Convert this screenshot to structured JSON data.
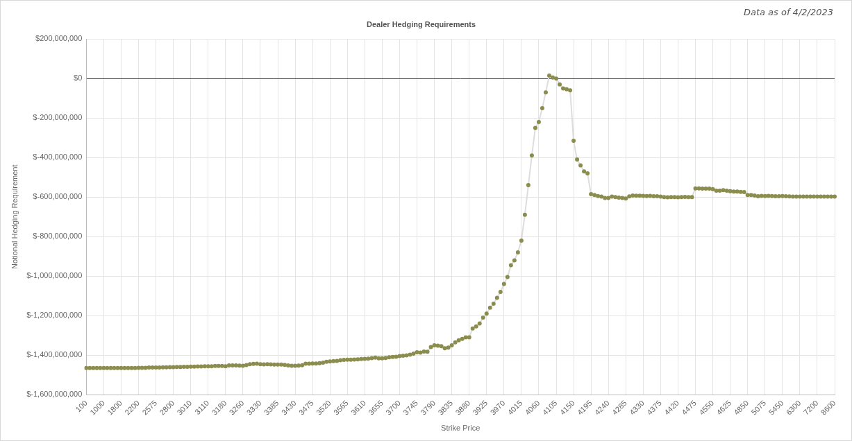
{
  "chart_data": {
    "type": "line",
    "title": "Dealer Hedging Requirements",
    "annotation": "Data as of 4/2/2023",
    "x_label": "Strike Price",
    "y_label": "Notional Hedging Requirement",
    "color": "#8b8d4e",
    "marker": "circle",
    "line_style": "solid",
    "grid": true,
    "categories": [
      "100",
      null,
      null,
      null,
      null,
      "1000",
      null,
      null,
      null,
      null,
      "1800",
      null,
      null,
      null,
      null,
      "2200",
      null,
      null,
      null,
      null,
      "2575",
      null,
      null,
      null,
      null,
      "2800",
      null,
      null,
      null,
      null,
      "3010",
      null,
      null,
      null,
      null,
      "3110",
      null,
      null,
      null,
      null,
      "3180",
      null,
      null,
      null,
      null,
      "3260",
      null,
      null,
      null,
      null,
      "3330",
      null,
      null,
      null,
      null,
      "3385",
      null,
      null,
      null,
      null,
      "3430",
      null,
      null,
      null,
      null,
      "3475",
      null,
      null,
      null,
      null,
      "3520",
      null,
      null,
      null,
      null,
      "3565",
      null,
      null,
      null,
      null,
      "3610",
      null,
      null,
      null,
      null,
      "3655",
      null,
      null,
      null,
      null,
      "3700",
      null,
      null,
      null,
      null,
      "3745",
      null,
      null,
      null,
      null,
      "3790",
      null,
      null,
      null,
      null,
      "3835",
      null,
      null,
      null,
      null,
      "3880",
      null,
      null,
      null,
      null,
      "3925",
      null,
      null,
      null,
      null,
      "3970",
      null,
      null,
      null,
      null,
      "4015",
      null,
      null,
      null,
      null,
      "4060",
      null,
      null,
      null,
      null,
      "4105",
      null,
      null,
      null,
      null,
      "4150",
      null,
      null,
      null,
      null,
      "4195",
      null,
      null,
      null,
      null,
      "4240",
      null,
      null,
      null,
      null,
      "4285",
      null,
      null,
      null,
      null,
      "4330",
      null,
      null,
      null,
      null,
      "4375",
      null,
      null,
      null,
      null,
      "4420",
      null,
      null,
      null,
      null,
      "4475",
      null,
      null,
      null,
      null,
      "4550",
      null,
      null,
      null,
      null,
      "4625",
      null,
      null,
      null,
      null,
      "4850",
      null,
      null,
      null,
      null,
      "5075",
      null,
      null,
      null,
      null,
      "5450",
      null,
      null,
      null,
      null,
      "6300",
      null,
      null,
      null,
      null,
      "7200",
      null,
      null,
      null,
      null,
      "8600"
    ],
    "values": [
      -1465000000,
      -1465000000,
      -1465000000,
      -1465000000,
      -1465000000,
      -1465000000,
      -1465000000,
      -1465000000,
      -1465000000,
      -1465000000,
      -1465000000,
      -1465000000,
      -1465000000,
      -1465000000,
      -1465000000,
      -1464000000,
      -1464000000,
      -1464000000,
      -1463000000,
      -1463000000,
      -1463000000,
      -1463000000,
      -1462000000,
      -1462000000,
      -1461000000,
      -1461000000,
      -1460000000,
      -1460000000,
      -1459000000,
      -1459000000,
      -1458000000,
      -1458000000,
      -1457000000,
      -1457000000,
      -1456000000,
      -1456000000,
      -1456000000,
      -1455000000,
      -1455000000,
      -1455000000,
      -1456000000,
      -1452000000,
      -1452000000,
      -1452000000,
      -1453000000,
      -1454000000,
      -1450000000,
      -1446000000,
      -1444000000,
      -1443000000,
      -1446000000,
      -1447000000,
      -1446000000,
      -1447000000,
      -1448000000,
      -1448000000,
      -1448000000,
      -1449000000,
      -1452000000,
      -1454000000,
      -1454000000,
      -1453000000,
      -1451000000,
      -1443000000,
      -1443000000,
      -1442000000,
      -1442000000,
      -1441000000,
      -1438000000,
      -1434000000,
      -1432000000,
      -1430000000,
      -1429000000,
      -1426000000,
      -1424000000,
      -1423000000,
      -1423000000,
      -1422000000,
      -1421000000,
      -1420000000,
      -1419000000,
      -1418000000,
      -1415000000,
      -1413000000,
      -1416000000,
      -1416000000,
      -1414000000,
      -1411000000,
      -1409000000,
      -1408000000,
      -1405000000,
      -1403000000,
      -1401000000,
      -1398000000,
      -1392000000,
      -1385000000,
      -1387000000,
      -1382000000,
      -1383000000,
      -1359000000,
      -1350000000,
      -1352000000,
      -1355000000,
      -1365000000,
      -1362000000,
      -1350000000,
      -1335000000,
      -1325000000,
      -1318000000,
      -1310000000,
      -1310000000,
      -1265000000,
      -1255000000,
      -1240000000,
      -1210000000,
      -1190000000,
      -1160000000,
      -1140000000,
      -1110000000,
      -1080000000,
      -1040000000,
      -1005000000,
      -945000000,
      -920000000,
      -880000000,
      -820000000,
      -690000000,
      -540000000,
      -390000000,
      -250000000,
      -220000000,
      -150000000,
      -70000000,
      15000000,
      5000000,
      0,
      -30000000,
      -50000000,
      -55000000,
      -60000000,
      -315000000,
      -410000000,
      -440000000,
      -470000000,
      -480000000,
      -585000000,
      -590000000,
      -595000000,
      -598000000,
      -605000000,
      -605000000,
      -598000000,
      -600000000,
      -603000000,
      -605000000,
      -607000000,
      -597000000,
      -592000000,
      -593000000,
      -593000000,
      -594000000,
      -595000000,
      -594000000,
      -596000000,
      -596000000,
      -598000000,
      -600000000,
      -601000000,
      -600000000,
      -600000000,
      -601000000,
      -600000000,
      -599000000,
      -600000000,
      -600000000,
      -556000000,
      -556000000,
      -557000000,
      -557000000,
      -557000000,
      -560000000,
      -568000000,
      -568000000,
      -565000000,
      -568000000,
      -570000000,
      -572000000,
      -572000000,
      -574000000,
      -575000000,
      -590000000,
      -590000000,
      -592000000,
      -596000000,
      -594000000,
      -595000000,
      -594000000,
      -595000000,
      -596000000,
      -596000000,
      -595000000,
      -596000000,
      -597000000,
      -598000000,
      -598000000,
      -598000000,
      -598000000,
      -598000000,
      -598000000,
      -598000000,
      -598000000,
      -598000000,
      -598000000,
      -598000000,
      -598000000,
      -598000000
    ],
    "ylim": [
      -1600000000,
      200000000
    ],
    "yticks": [
      {
        "value": -1600000000,
        "label": "$-1,600,000,000"
      },
      {
        "value": -1400000000,
        "label": "$-1,400,000,000"
      },
      {
        "value": -1200000000,
        "label": "$-1,200,000,000"
      },
      {
        "value": -1000000000,
        "label": "$-1,000,000,000"
      },
      {
        "value": -800000000,
        "label": "$-800,000,000"
      },
      {
        "value": -600000000,
        "label": "$-600,000,000"
      },
      {
        "value": -400000000,
        "label": "$-400,000,000"
      },
      {
        "value": -200000000,
        "label": "$-200,000,000"
      },
      {
        "value": 0,
        "label": "$0"
      },
      {
        "value": 200000000,
        "label": "$200,000,000"
      }
    ]
  }
}
